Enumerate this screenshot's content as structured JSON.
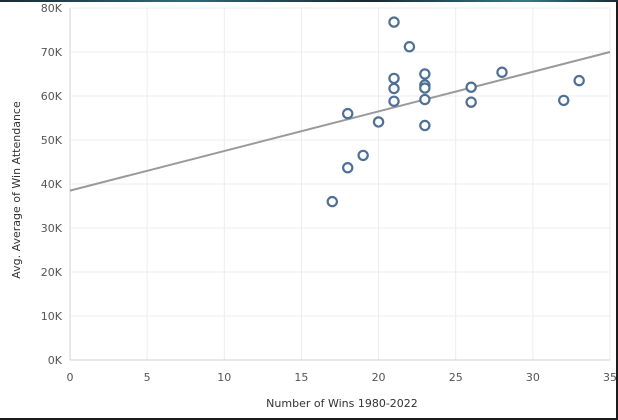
{
  "chart_data": {
    "type": "scatter",
    "title": "",
    "xlabel": "Number of Wins 1980-2022",
    "ylabel": "Avg. Average of Win Attendance",
    "xlim": [
      0,
      35
    ],
    "ylim": [
      0,
      80000
    ],
    "x_ticks": [
      0,
      5,
      10,
      15,
      20,
      25,
      30,
      35
    ],
    "x_tick_labels": [
      "0",
      "5",
      "10",
      "15",
      "20",
      "25",
      "30",
      "35"
    ],
    "y_ticks": [
      0,
      10000,
      20000,
      30000,
      40000,
      50000,
      60000,
      70000,
      80000
    ],
    "y_tick_labels": [
      "0K",
      "10K",
      "20K",
      "30K",
      "40K",
      "50K",
      "60K",
      "70K",
      "80K"
    ],
    "grid": true,
    "points": [
      {
        "x": 17,
        "y": 36000
      },
      {
        "x": 18,
        "y": 43700
      },
      {
        "x": 18,
        "y": 56000
      },
      {
        "x": 19,
        "y": 46500
      },
      {
        "x": 20,
        "y": 54100
      },
      {
        "x": 21,
        "y": 76800
      },
      {
        "x": 21,
        "y": 64000
      },
      {
        "x": 21,
        "y": 61700
      },
      {
        "x": 21,
        "y": 58800
      },
      {
        "x": 22,
        "y": 71200
      },
      {
        "x": 23,
        "y": 65000
      },
      {
        "x": 23,
        "y": 62500
      },
      {
        "x": 23,
        "y": 61800
      },
      {
        "x": 23,
        "y": 59200
      },
      {
        "x": 23,
        "y": 53300
      },
      {
        "x": 26,
        "y": 62000
      },
      {
        "x": 26,
        "y": 58600
      },
      {
        "x": 28,
        "y": 65400
      },
      {
        "x": 32,
        "y": 59000
      },
      {
        "x": 33,
        "y": 63500
      }
    ],
    "trend_line": {
      "x": [
        0,
        35
      ],
      "y": [
        38500,
        70000
      ]
    },
    "colors": {
      "point_stroke": "#4e6f96",
      "trend_line": "#9a9a9a",
      "grid": "#ececec",
      "axis": "#d2d2d2"
    }
  }
}
